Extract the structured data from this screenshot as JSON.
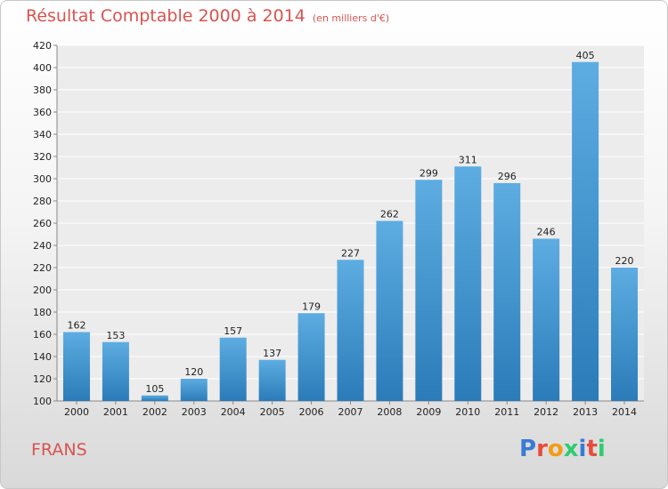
{
  "header": {
    "title": "Résultat Comptable 2000 à 2014",
    "subtitle": "(en milliers d'€)"
  },
  "footer": {
    "commune": "FRANS",
    "logo_text": "Proxiti"
  },
  "colors": {
    "bar_top": "#5dade2",
    "bar_bottom": "#2b7bb9",
    "title": "#d9534f",
    "logo_letters": [
      "#3a7bd5",
      "#e74c3c",
      "#f39c12",
      "#2ecc71",
      "#3a7bd5",
      "#e74c3c",
      "#2ecc71"
    ]
  },
  "chart_data": {
    "type": "bar",
    "title": "Résultat Comptable 2000 à 2014",
    "xlabel": "",
    "ylabel": "",
    "categories": [
      "2000",
      "2001",
      "2002",
      "2003",
      "2004",
      "2005",
      "2006",
      "2007",
      "2008",
      "2009",
      "2010",
      "2011",
      "2012",
      "2013",
      "2014"
    ],
    "values": [
      162,
      153,
      105,
      120,
      157,
      137,
      179,
      227,
      262,
      299,
      311,
      296,
      246,
      405,
      220
    ],
    "ylim": [
      100,
      420
    ],
    "yticks": [
      100,
      120,
      140,
      160,
      180,
      200,
      220,
      240,
      260,
      280,
      300,
      320,
      340,
      360,
      380,
      400,
      420
    ],
    "grid": true,
    "legend": "none"
  }
}
